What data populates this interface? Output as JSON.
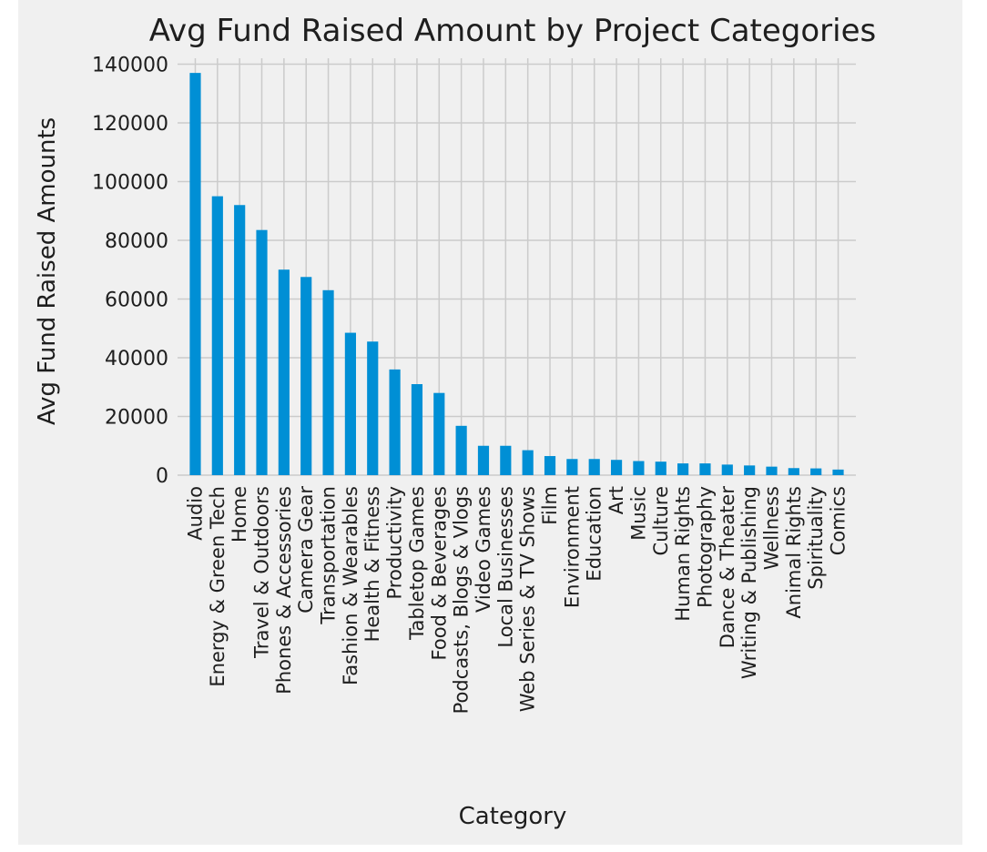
{
  "chart_data": {
    "type": "bar",
    "title": "Avg Fund Raised Amount by Project Categories",
    "xlabel": "Category",
    "ylabel": "Avg Fund Raised Amounts",
    "ylim": [
      0,
      142000
    ],
    "yticks": [
      0,
      20000,
      40000,
      60000,
      80000,
      100000,
      120000,
      140000
    ],
    "grid": true,
    "legend": "none",
    "bar_color": "#008fd5",
    "categories": [
      "Audio",
      "Energy & Green Tech",
      "Home",
      "Travel & Outdoors",
      "Phones & Accessories",
      "Camera Gear",
      "Transportation",
      "Fashion & Wearables",
      "Health & Fitness",
      "Productivity",
      "Tabletop Games",
      "Food & Beverages",
      "Podcasts, Blogs & Vlogs",
      "Video Games",
      "Local Businesses",
      "Web Series & TV Shows",
      "Film",
      "Environment",
      "Education",
      "Art",
      "Music",
      "Culture",
      "Human Rights",
      "Photography",
      "Dance & Theater",
      "Writing & Publishing",
      "Wellness",
      "Animal Rights",
      "Spirituality",
      "Comics"
    ],
    "values": [
      137000,
      95000,
      92000,
      83500,
      70000,
      67500,
      63000,
      48500,
      45500,
      36000,
      31000,
      28000,
      16800,
      10000,
      10000,
      8500,
      6500,
      5500,
      5500,
      5200,
      4800,
      4600,
      4000,
      4000,
      3600,
      3300,
      2900,
      2400,
      2300,
      1900
    ]
  }
}
